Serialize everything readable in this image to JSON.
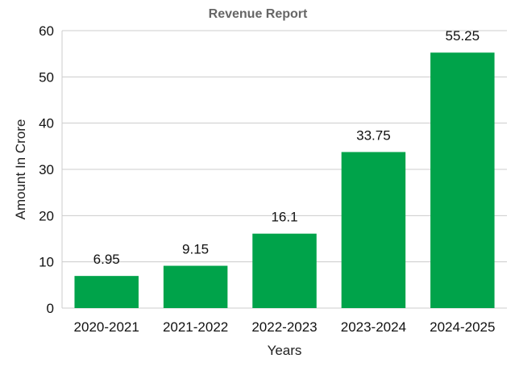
{
  "chart_data": {
    "type": "bar",
    "title": "Revenue Report",
    "xlabel": "Years",
    "ylabel": "Amount In Crore",
    "categories": [
      "2020-2021",
      "2021-2022",
      "2022-2023",
      "2023-2024",
      "2024-2025"
    ],
    "values": [
      6.95,
      9.15,
      16.1,
      33.75,
      55.25
    ],
    "data_labels": [
      "6.95",
      "9.15",
      "16.1",
      "33.75",
      "55.25"
    ],
    "ylim": [
      0,
      60
    ],
    "yticks": [
      0,
      10,
      20,
      30,
      40,
      50,
      60
    ],
    "grid": true,
    "bar_color": "#00a34a",
    "legend": "none"
  }
}
